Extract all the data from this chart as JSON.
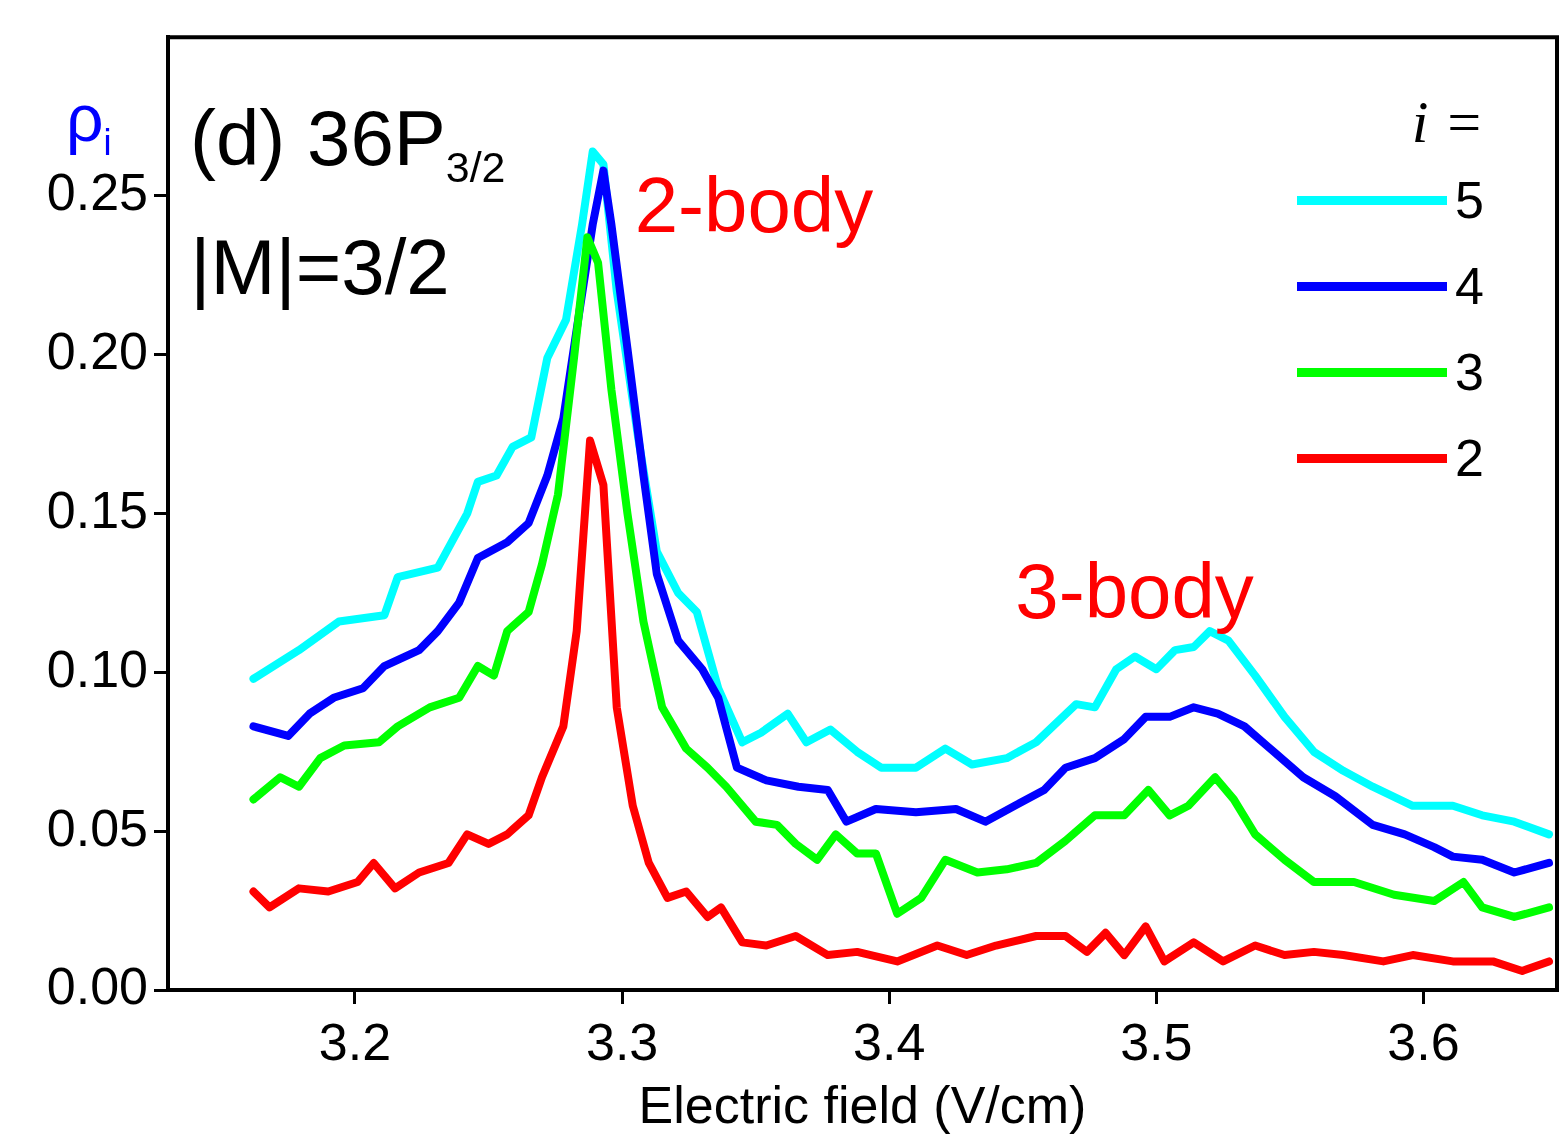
{
  "chart_data": {
    "type": "line",
    "title": "(d) 36P$_{3/2}$",
    "xlabel": "Electric field (V/cm)",
    "ylabel": "ρ$_{i}$",
    "legend_title": "i =",
    "legend": "top right",
    "grid": false,
    "marker": "none",
    "line_style": "solid",
    "xlim": [
      3.13,
      3.65
    ],
    "xticks": [
      3.2,
      3.3,
      3.4,
      3.5,
      3.6
    ],
    "ylim": [
      0,
      0.3
    ],
    "yticks": [
      {
        "value": 0,
        "label": "0.00"
      },
      {
        "value": 0.05,
        "label": "0.05"
      },
      {
        "value": 0.1,
        "label": "0.10"
      },
      {
        "value": 0.15,
        "label": "0.15"
      },
      {
        "value": 0.2,
        "label": "0.20"
      },
      {
        "value": 0.25,
        "label": "0.25"
      }
    ],
    "annotations": [
      "|M|=3/2",
      "2-body",
      "3-body"
    ],
    "series": [
      {
        "name": "5",
        "color": "#00ffff",
        "x": [
          3.162,
          3.179,
          3.194,
          3.211,
          3.216,
          3.231,
          3.242,
          3.246,
          3.253,
          3.259,
          3.266,
          3.272,
          3.279,
          3.285,
          3.289,
          3.293,
          3.298,
          3.306,
          3.313,
          3.321,
          3.328,
          3.336,
          3.345,
          3.352,
          3.362,
          3.369,
          3.378,
          3.388,
          3.397,
          3.41,
          3.421,
          3.431,
          3.444,
          3.455,
          3.47,
          3.477,
          3.485,
          3.492,
          3.5,
          3.507,
          3.514,
          3.52,
          3.527,
          3.537,
          3.548,
          3.559,
          3.57,
          3.581,
          3.596,
          3.611,
          3.622,
          3.634,
          3.647
        ],
        "values": [
          0.098,
          0.107,
          0.116,
          0.118,
          0.13,
          0.133,
          0.15,
          0.16,
          0.162,
          0.171,
          0.174,
          0.199,
          0.211,
          0.241,
          0.264,
          0.26,
          0.22,
          0.174,
          0.138,
          0.125,
          0.119,
          0.095,
          0.078,
          0.081,
          0.087,
          0.078,
          0.082,
          0.075,
          0.07,
          0.07,
          0.076,
          0.071,
          0.073,
          0.078,
          0.09,
          0.089,
          0.101,
          0.105,
          0.101,
          0.107,
          0.108,
          0.113,
          0.11,
          0.099,
          0.086,
          0.075,
          0.069,
          0.064,
          0.058,
          0.058,
          0.055,
          0.053,
          0.049
        ]
      },
      {
        "name": "4",
        "color": "#0000ff",
        "x": [
          3.162,
          3.175,
          3.183,
          3.192,
          3.203,
          3.211,
          3.224,
          3.231,
          3.239,
          3.246,
          3.257,
          3.265,
          3.272,
          3.278,
          3.283,
          3.289,
          3.293,
          3.296,
          3.302,
          3.308,
          3.313,
          3.321,
          3.33,
          3.336,
          3.343,
          3.354,
          3.366,
          3.377,
          3.384,
          3.395,
          3.41,
          3.425,
          3.436,
          3.447,
          3.458,
          3.466,
          3.477,
          3.488,
          3.496,
          3.505,
          3.514,
          3.523,
          3.533,
          3.544,
          3.555,
          3.567,
          3.581,
          3.593,
          3.604,
          3.611,
          3.622,
          3.634,
          3.647
        ],
        "values": [
          0.083,
          0.08,
          0.087,
          0.092,
          0.095,
          0.102,
          0.107,
          0.113,
          0.122,
          0.136,
          0.141,
          0.147,
          0.162,
          0.18,
          0.208,
          0.241,
          0.258,
          0.241,
          0.202,
          0.162,
          0.131,
          0.11,
          0.101,
          0.092,
          0.07,
          0.066,
          0.064,
          0.063,
          0.053,
          0.057,
          0.056,
          0.057,
          0.053,
          0.058,
          0.063,
          0.07,
          0.073,
          0.079,
          0.086,
          0.086,
          0.089,
          0.087,
          0.083,
          0.075,
          0.067,
          0.061,
          0.052,
          0.049,
          0.045,
          0.042,
          0.041,
          0.037,
          0.04
        ]
      },
      {
        "name": "3",
        "color": "#00ff00",
        "x": [
          3.162,
          3.172,
          3.179,
          3.187,
          3.196,
          3.209,
          3.216,
          3.228,
          3.239,
          3.246,
          3.252,
          3.257,
          3.265,
          3.27,
          3.276,
          3.282,
          3.287,
          3.291,
          3.296,
          3.302,
          3.308,
          3.315,
          3.324,
          3.332,
          3.339,
          3.35,
          3.358,
          3.365,
          3.373,
          3.38,
          3.388,
          3.395,
          3.403,
          3.412,
          3.421,
          3.433,
          3.444,
          3.455,
          3.466,
          3.477,
          3.488,
          3.497,
          3.505,
          3.512,
          3.522,
          3.529,
          3.537,
          3.548,
          3.559,
          3.574,
          3.589,
          3.604,
          3.615,
          3.622,
          3.634,
          3.647
        ],
        "values": [
          0.06,
          0.067,
          0.064,
          0.073,
          0.077,
          0.078,
          0.083,
          0.089,
          0.092,
          0.102,
          0.099,
          0.113,
          0.119,
          0.134,
          0.156,
          0.199,
          0.237,
          0.229,
          0.189,
          0.15,
          0.116,
          0.089,
          0.076,
          0.07,
          0.064,
          0.053,
          0.052,
          0.046,
          0.041,
          0.049,
          0.043,
          0.043,
          0.024,
          0.029,
          0.041,
          0.037,
          0.038,
          0.04,
          0.047,
          0.055,
          0.055,
          0.063,
          0.055,
          0.058,
          0.067,
          0.06,
          0.049,
          0.041,
          0.034,
          0.034,
          0.03,
          0.028,
          0.034,
          0.026,
          0.023,
          0.026
        ]
      },
      {
        "name": "2",
        "color": "#ff0000",
        "x": [
          3.162,
          3.168,
          3.179,
          3.19,
          3.201,
          3.207,
          3.215,
          3.224,
          3.235,
          3.242,
          3.25,
          3.257,
          3.265,
          3.27,
          3.278,
          3.283,
          3.288,
          3.293,
          3.298,
          3.304,
          3.31,
          3.317,
          3.324,
          3.332,
          3.337,
          3.345,
          3.354,
          3.365,
          3.377,
          3.388,
          3.403,
          3.418,
          3.429,
          3.44,
          3.455,
          3.466,
          3.474,
          3.481,
          3.488,
          3.496,
          3.503,
          3.514,
          3.525,
          3.537,
          3.548,
          3.559,
          3.57,
          3.585,
          3.596,
          3.611,
          3.626,
          3.637,
          3.647
        ],
        "values": [
          0.031,
          0.026,
          0.032,
          0.031,
          0.034,
          0.04,
          0.032,
          0.037,
          0.04,
          0.049,
          0.046,
          0.049,
          0.055,
          0.067,
          0.083,
          0.113,
          0.173,
          0.159,
          0.089,
          0.058,
          0.04,
          0.029,
          0.031,
          0.023,
          0.026,
          0.015,
          0.014,
          0.017,
          0.011,
          0.012,
          0.009,
          0.014,
          0.011,
          0.014,
          0.017,
          0.017,
          0.012,
          0.018,
          0.011,
          0.02,
          0.009,
          0.015,
          0.009,
          0.014,
          0.011,
          0.012,
          0.011,
          0.009,
          0.011,
          0.009,
          0.009,
          0.006,
          0.009
        ]
      }
    ]
  }
}
